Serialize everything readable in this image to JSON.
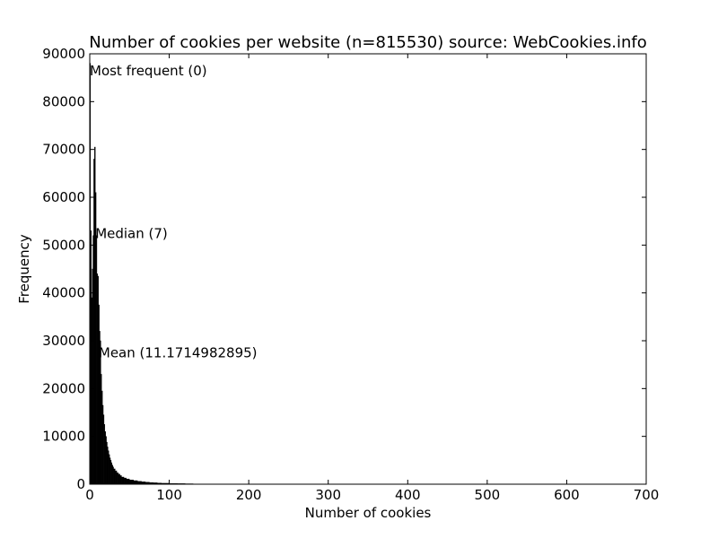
{
  "chart_data": {
    "type": "bar",
    "title": "Number of cookies per website (n=815530) source: WebCookies.info",
    "xlabel": "Number of cookies",
    "ylabel": "Frequency",
    "xlim": [
      0,
      700
    ],
    "ylim": [
      0,
      90000
    ],
    "x_ticks": [
      0,
      100,
      200,
      300,
      400,
      500,
      600,
      700
    ],
    "y_ticks": [
      0,
      10000,
      20000,
      30000,
      40000,
      50000,
      60000,
      70000,
      80000,
      90000
    ],
    "grid": false,
    "bar_color": "#000000",
    "bins": {
      "x": [
        0,
        1,
        2,
        3,
        4,
        5,
        6,
        7,
        8,
        9,
        10,
        11,
        12,
        13,
        14,
        15,
        16,
        17,
        18,
        19,
        20,
        21,
        22,
        23,
        24,
        25,
        26,
        27,
        28,
        29,
        30,
        32,
        34,
        36,
        38,
        40,
        43,
        46,
        50,
        55,
        60,
        65,
        70,
        75,
        80,
        85,
        90,
        100,
        110,
        120
      ],
      "values": [
        88000,
        53000,
        39000,
        45000,
        52000,
        68000,
        70500,
        61000,
        52000,
        44000,
        43500,
        37500,
        32000,
        30000,
        23000,
        19500,
        16500,
        14500,
        12500,
        11000,
        10000,
        8800,
        7800,
        7000,
        6200,
        5500,
        5000,
        4500,
        4000,
        3600,
        3200,
        2800,
        2400,
        2100,
        1800,
        1500,
        1300,
        1100,
        900,
        750,
        600,
        500,
        420,
        350,
        300,
        250,
        200,
        150,
        120,
        90
      ]
    },
    "annotations": [
      {
        "text": "Most frequent (0)",
        "x": 0,
        "y": 85500
      },
      {
        "text": "Median (7)",
        "x": 7,
        "y": 51500
      },
      {
        "text": "Mean (11.1714982895)",
        "x": 11.17,
        "y": 26500
      }
    ]
  }
}
